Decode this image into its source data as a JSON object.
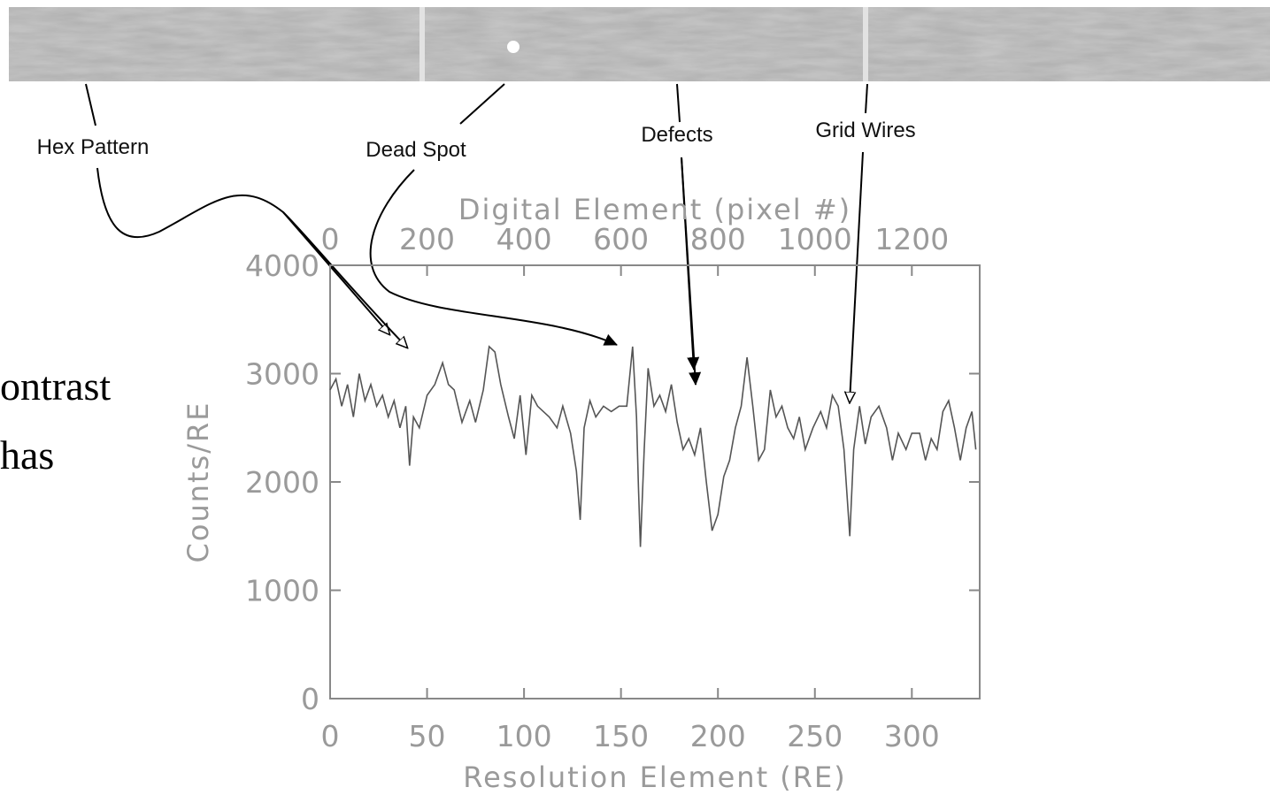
{
  "chart_data": {
    "type": "line",
    "x_label": "Resolution Element (RE)",
    "x2_label": "Digital Element (pixel #)",
    "y_label": "Counts/RE",
    "xlim": [
      0,
      335
    ],
    "xticks": [
      0,
      50,
      100,
      150,
      200,
      250,
      300
    ],
    "x2lim": [
      0,
      1340
    ],
    "x2ticks": [
      0,
      200,
      400,
      600,
      800,
      1000,
      1200
    ],
    "ylim": [
      0,
      4000
    ],
    "yticks": [
      0,
      1000,
      2000,
      3000,
      4000
    ],
    "color": "#555555",
    "x": [
      0,
      3,
      6,
      9,
      12,
      15,
      18,
      21,
      24,
      27,
      30,
      33,
      36,
      39,
      41,
      43,
      46,
      50,
      54,
      58,
      61,
      64,
      68,
      72,
      75,
      79,
      82,
      85,
      88,
      92,
      95,
      98,
      101,
      104,
      107,
      110,
      113,
      117,
      120,
      124,
      127,
      129,
      131,
      134,
      137,
      141,
      145,
      149,
      153,
      156,
      158,
      159,
      160,
      162,
      164,
      167,
      170,
      173,
      176,
      179,
      182,
      185,
      188,
      191,
      194,
      197,
      200,
      203,
      206,
      209,
      212,
      215,
      218,
      221,
      224,
      227,
      230,
      233,
      236,
      239,
      242,
      245,
      249,
      253,
      256,
      259,
      262,
      265,
      268,
      270,
      273,
      276,
      279,
      283,
      287,
      290,
      293,
      297,
      300,
      304,
      307,
      310,
      313,
      316,
      319,
      322,
      325,
      328,
      331,
      333
    ],
    "values": [
      2850,
      2950,
      2700,
      2900,
      2600,
      3000,
      2750,
      2900,
      2700,
      2800,
      2600,
      2750,
      2500,
      2700,
      2150,
      2600,
      2500,
      2800,
      2900,
      3100,
      2900,
      2850,
      2550,
      2750,
      2550,
      2850,
      3250,
      3200,
      2900,
      2600,
      2400,
      2800,
      2250,
      2800,
      2700,
      2650,
      2600,
      2500,
      2700,
      2450,
      2100,
      1650,
      2500,
      2750,
      2600,
      2700,
      2650,
      2700,
      2700,
      3250,
      2600,
      1950,
      1400,
      2300,
      3050,
      2700,
      2800,
      2650,
      2900,
      2550,
      2300,
      2400,
      2250,
      2500,
      2000,
      1550,
      1700,
      2050,
      2200,
      2500,
      2700,
      3150,
      2700,
      2200,
      2300,
      2850,
      2600,
      2700,
      2500,
      2400,
      2600,
      2300,
      2500,
      2650,
      2500,
      2800,
      2700,
      2300,
      1500,
      2300,
      2700,
      2350,
      2600,
      2700,
      2500,
      2200,
      2450,
      2300,
      2450,
      2450,
      2200,
      2400,
      2300,
      2650,
      2750,
      2500,
      2200,
      2500,
      2650,
      2300
    ],
    "annotations": [
      "Hex Pattern",
      "Dead Spot",
      "Defects",
      "Grid Wires"
    ]
  },
  "slide_text": [
    "ontrast",
    "has"
  ]
}
